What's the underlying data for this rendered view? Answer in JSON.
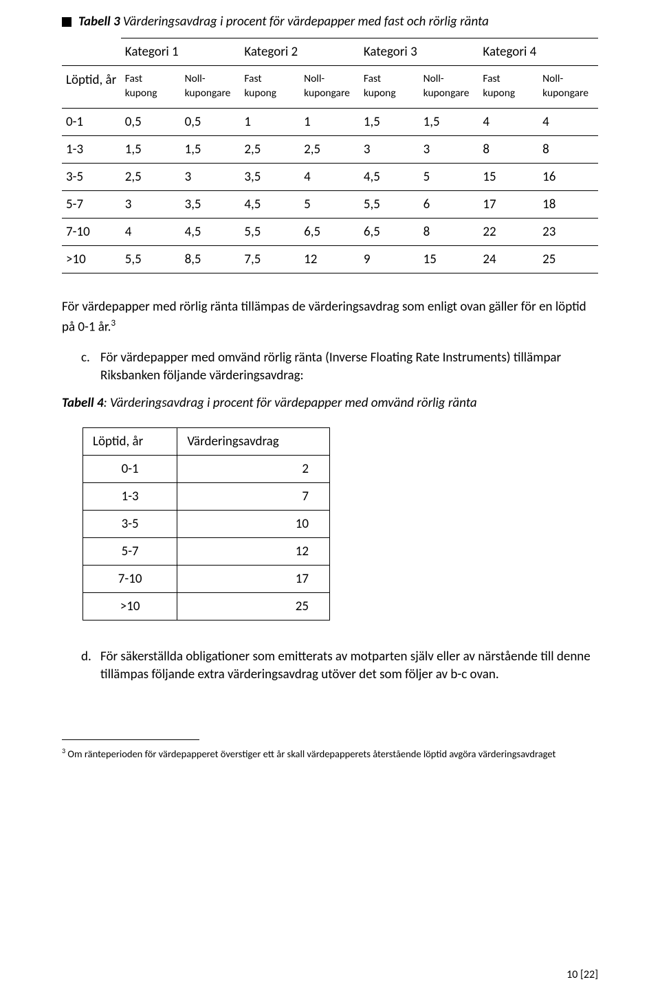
{
  "table3": {
    "titleBold": "Tabell 3",
    "titleRest": " Värderingsavdrag i procent för värdepapper med fast och rörlig ränta",
    "rowHeaderLabel": "Löptid, år",
    "categories": [
      "Kategori 1",
      "Kategori 2",
      "Kategori 3",
      "Kategori 4"
    ],
    "subHeaders": {
      "fast": "Fast kupong",
      "noll": "Noll-kupongare"
    },
    "rows": [
      {
        "label": "0-1",
        "vals": [
          "0,5",
          "0,5",
          "1",
          "1",
          "1,5",
          "1,5",
          "4",
          "4"
        ]
      },
      {
        "label": "1-3",
        "vals": [
          "1,5",
          "1,5",
          "2,5",
          "2,5",
          "3",
          "3",
          "8",
          "8"
        ]
      },
      {
        "label": "3-5",
        "vals": [
          "2,5",
          "3",
          "3,5",
          "4",
          "4,5",
          "5",
          "15",
          "16"
        ]
      },
      {
        "label": "5-7",
        "vals": [
          "3",
          "3,5",
          "4,5",
          "5",
          "5,5",
          "6",
          "17",
          "18"
        ]
      },
      {
        "label": "7-10",
        "vals": [
          "4",
          "4,5",
          "5,5",
          "6,5",
          "6,5",
          "8",
          "22",
          "23"
        ]
      },
      {
        "label": ">10",
        "vals": [
          "5,5",
          "8,5",
          "7,5",
          "12",
          "9",
          "15",
          "24",
          "25"
        ]
      }
    ]
  },
  "paraAfterT3_a": "För värdepapper med rörlig ränta tillämpas de värderingsavdrag som enligt ovan gäller för en löptid på 0-1 år.",
  "paraAfterT3_sup": "3",
  "listC": {
    "marker": "c.",
    "text": "För värdepapper med omvänd rörlig ränta (Inverse Floating Rate Instruments) tillämpar Riksbanken följande värderingsavdrag:"
  },
  "table4": {
    "titleBold": "Tabell 4",
    "titleRest": ": Värderingsavdrag i procent för värdepapper med omvänd rörlig ränta",
    "headers": [
      "Löptid, år",
      "Värderingsavdrag"
    ],
    "rows": [
      [
        "0-1",
        "2"
      ],
      [
        "1-3",
        "7"
      ],
      [
        "3-5",
        "10"
      ],
      [
        "5-7",
        "12"
      ],
      [
        "7-10",
        "17"
      ],
      [
        ">10",
        "25"
      ]
    ]
  },
  "listD": {
    "marker": "d.",
    "text": "För säkerställda obligationer som emitterats av motparten själv eller av närstående till denne tillämpas följande extra värderingsavdrag utöver det som följer av b-c ovan."
  },
  "footnote": {
    "sup": "3",
    "text": " Om ränteperioden för värdepapperet överstiger ett år skall värdepapperets återstående löptid avgöra värderingsavdraget"
  },
  "pageNum": "10 [22]"
}
